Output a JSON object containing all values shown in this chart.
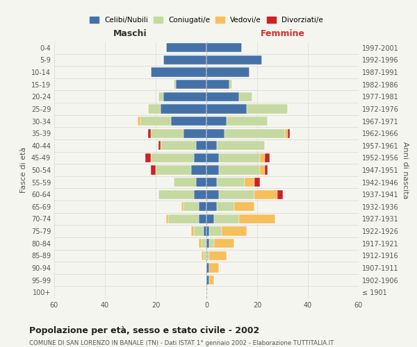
{
  "age_groups": [
    "100+",
    "95-99",
    "90-94",
    "85-89",
    "80-84",
    "75-79",
    "70-74",
    "65-69",
    "60-64",
    "55-59",
    "50-54",
    "45-49",
    "40-44",
    "35-39",
    "30-34",
    "25-29",
    "20-24",
    "15-19",
    "10-14",
    "5-9",
    "0-4"
  ],
  "birth_years": [
    "≤ 1901",
    "1902-1906",
    "1907-1911",
    "1912-1916",
    "1917-1921",
    "1922-1926",
    "1927-1931",
    "1932-1936",
    "1937-1941",
    "1942-1946",
    "1947-1951",
    "1952-1956",
    "1957-1961",
    "1962-1966",
    "1967-1971",
    "1972-1976",
    "1977-1981",
    "1982-1986",
    "1987-1991",
    "1992-1996",
    "1997-2001"
  ],
  "male": {
    "celibi": [
      0,
      0,
      0,
      0,
      0,
      1,
      3,
      3,
      5,
      4,
      6,
      5,
      4,
      9,
      14,
      18,
      17,
      12,
      22,
      17,
      16
    ],
    "coniugati": [
      0,
      0,
      0,
      1,
      2,
      4,
      12,
      6,
      14,
      9,
      14,
      17,
      14,
      13,
      12,
      5,
      2,
      1,
      0,
      0,
      0
    ],
    "vedovi": [
      0,
      0,
      0,
      1,
      1,
      1,
      1,
      1,
      0,
      0,
      0,
      0,
      0,
      0,
      1,
      0,
      0,
      0,
      0,
      0,
      0
    ],
    "divorziati": [
      0,
      0,
      0,
      0,
      0,
      0,
      0,
      0,
      0,
      0,
      2,
      2,
      1,
      1,
      0,
      0,
      0,
      0,
      0,
      0,
      0
    ]
  },
  "female": {
    "nubili": [
      0,
      1,
      1,
      0,
      1,
      1,
      3,
      4,
      5,
      4,
      5,
      5,
      4,
      7,
      8,
      16,
      13,
      9,
      17,
      22,
      14
    ],
    "coniugate": [
      0,
      0,
      0,
      1,
      2,
      5,
      10,
      7,
      14,
      11,
      16,
      16,
      19,
      24,
      16,
      16,
      5,
      1,
      0,
      0,
      0
    ],
    "vedove": [
      0,
      2,
      4,
      7,
      8,
      10,
      14,
      8,
      9,
      4,
      2,
      2,
      0,
      1,
      0,
      0,
      0,
      0,
      0,
      0,
      0
    ],
    "divorziate": [
      0,
      0,
      0,
      0,
      0,
      0,
      0,
      0,
      2,
      2,
      1,
      2,
      0,
      1,
      0,
      0,
      0,
      0,
      0,
      0,
      0
    ]
  },
  "colors": {
    "celibi": "#4472a8",
    "coniugati": "#c5d9a0",
    "vedovi": "#f5bf5a",
    "divorziati": "#cc2222"
  },
  "xlim": 60,
  "title": "Popolazione per età, sesso e stato civile - 2002",
  "subtitle": "COMUNE DI SAN LORENZO IN BANALE (TN) - Dati ISTAT 1° gennaio 2002 - Elaborazione TUTTITALIA.IT",
  "ylabel_left": "Fasce di età",
  "ylabel_right": "Anni di nascita",
  "xlabel_left": "Maschi",
  "xlabel_right": "Femmine",
  "legend_labels": [
    "Celibi/Nubili",
    "Coniugati/e",
    "Vedovi/e",
    "Divorziati/e"
  ],
  "bg_color": "#f5f5f0"
}
